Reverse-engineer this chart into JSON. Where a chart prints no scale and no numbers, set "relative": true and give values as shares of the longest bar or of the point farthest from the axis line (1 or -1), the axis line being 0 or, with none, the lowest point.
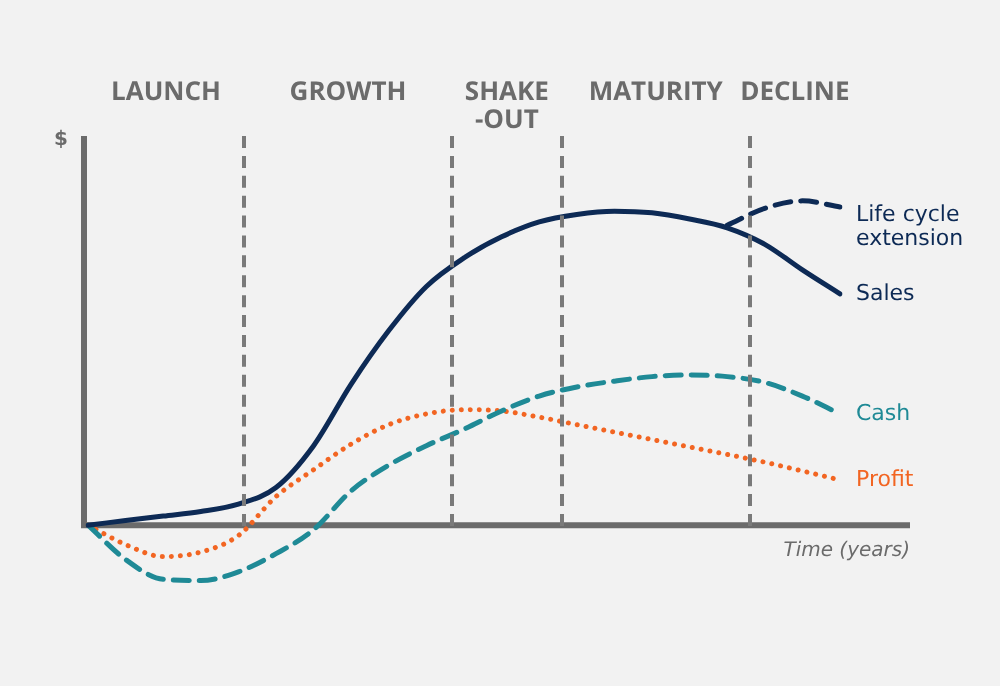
{
  "chart_data": {
    "type": "line",
    "relative": true,
    "ylabel": "$",
    "xlabel": "Time (years)",
    "legend": false,
    "marker": "none",
    "categories": [
      null,
      null,
      null,
      null,
      null,
      null,
      null,
      null,
      null,
      null,
      null,
      null,
      null,
      null,
      null,
      null,
      null,
      null,
      null,
      null,
      null
    ],
    "annotations": [
      "LAUNCH",
      "GROWTH",
      "SHAKE -OUT",
      "MATURITY",
      "DECLINE"
    ],
    "series": [
      {
        "name": "Sales",
        "color": "#0d2a55",
        "line_style": "solid",
        "values": [
          0,
          0.014,
          0.028,
          0.042,
          0.065,
          0.116,
          0.245,
          0.435,
          0.6,
          0.736,
          0.824,
          0.889,
          0.935,
          0.958,
          0.968,
          0.963,
          0.944,
          0.917,
          0.866,
          0.787,
          0.713
        ]
      },
      {
        "name": "Life cycle extension",
        "color": "#0d2a55",
        "line_style": "dashed",
        "values": [
          null,
          null,
          null,
          null,
          null,
          null,
          null,
          null,
          null,
          null,
          null,
          null,
          null,
          null,
          null,
          null,
          null,
          0.925,
          0.977,
          1,
          0.981
        ]
      },
      {
        "name": "Cash",
        "color": "#1f8a96",
        "line_style": "dashed",
        "values": [
          0,
          -0.106,
          -0.167,
          -0.171,
          -0.144,
          -0.088,
          -0.014,
          0.106,
          0.185,
          0.245,
          0.296,
          0.352,
          0.398,
          0.426,
          0.444,
          0.458,
          0.463,
          0.458,
          0.44,
          0.398,
          0.343
        ]
      },
      {
        "name": "Profit",
        "color": "#f26522",
        "line_style": "dotted",
        "values": [
          0,
          -0.06,
          -0.097,
          -0.083,
          -0.032,
          0.088,
          0.171,
          0.25,
          0.31,
          0.343,
          0.356,
          0.352,
          0.333,
          0.31,
          0.287,
          0.264,
          0.241,
          0.218,
          0.194,
          0.167,
          0.139
        ]
      }
    ]
  }
}
